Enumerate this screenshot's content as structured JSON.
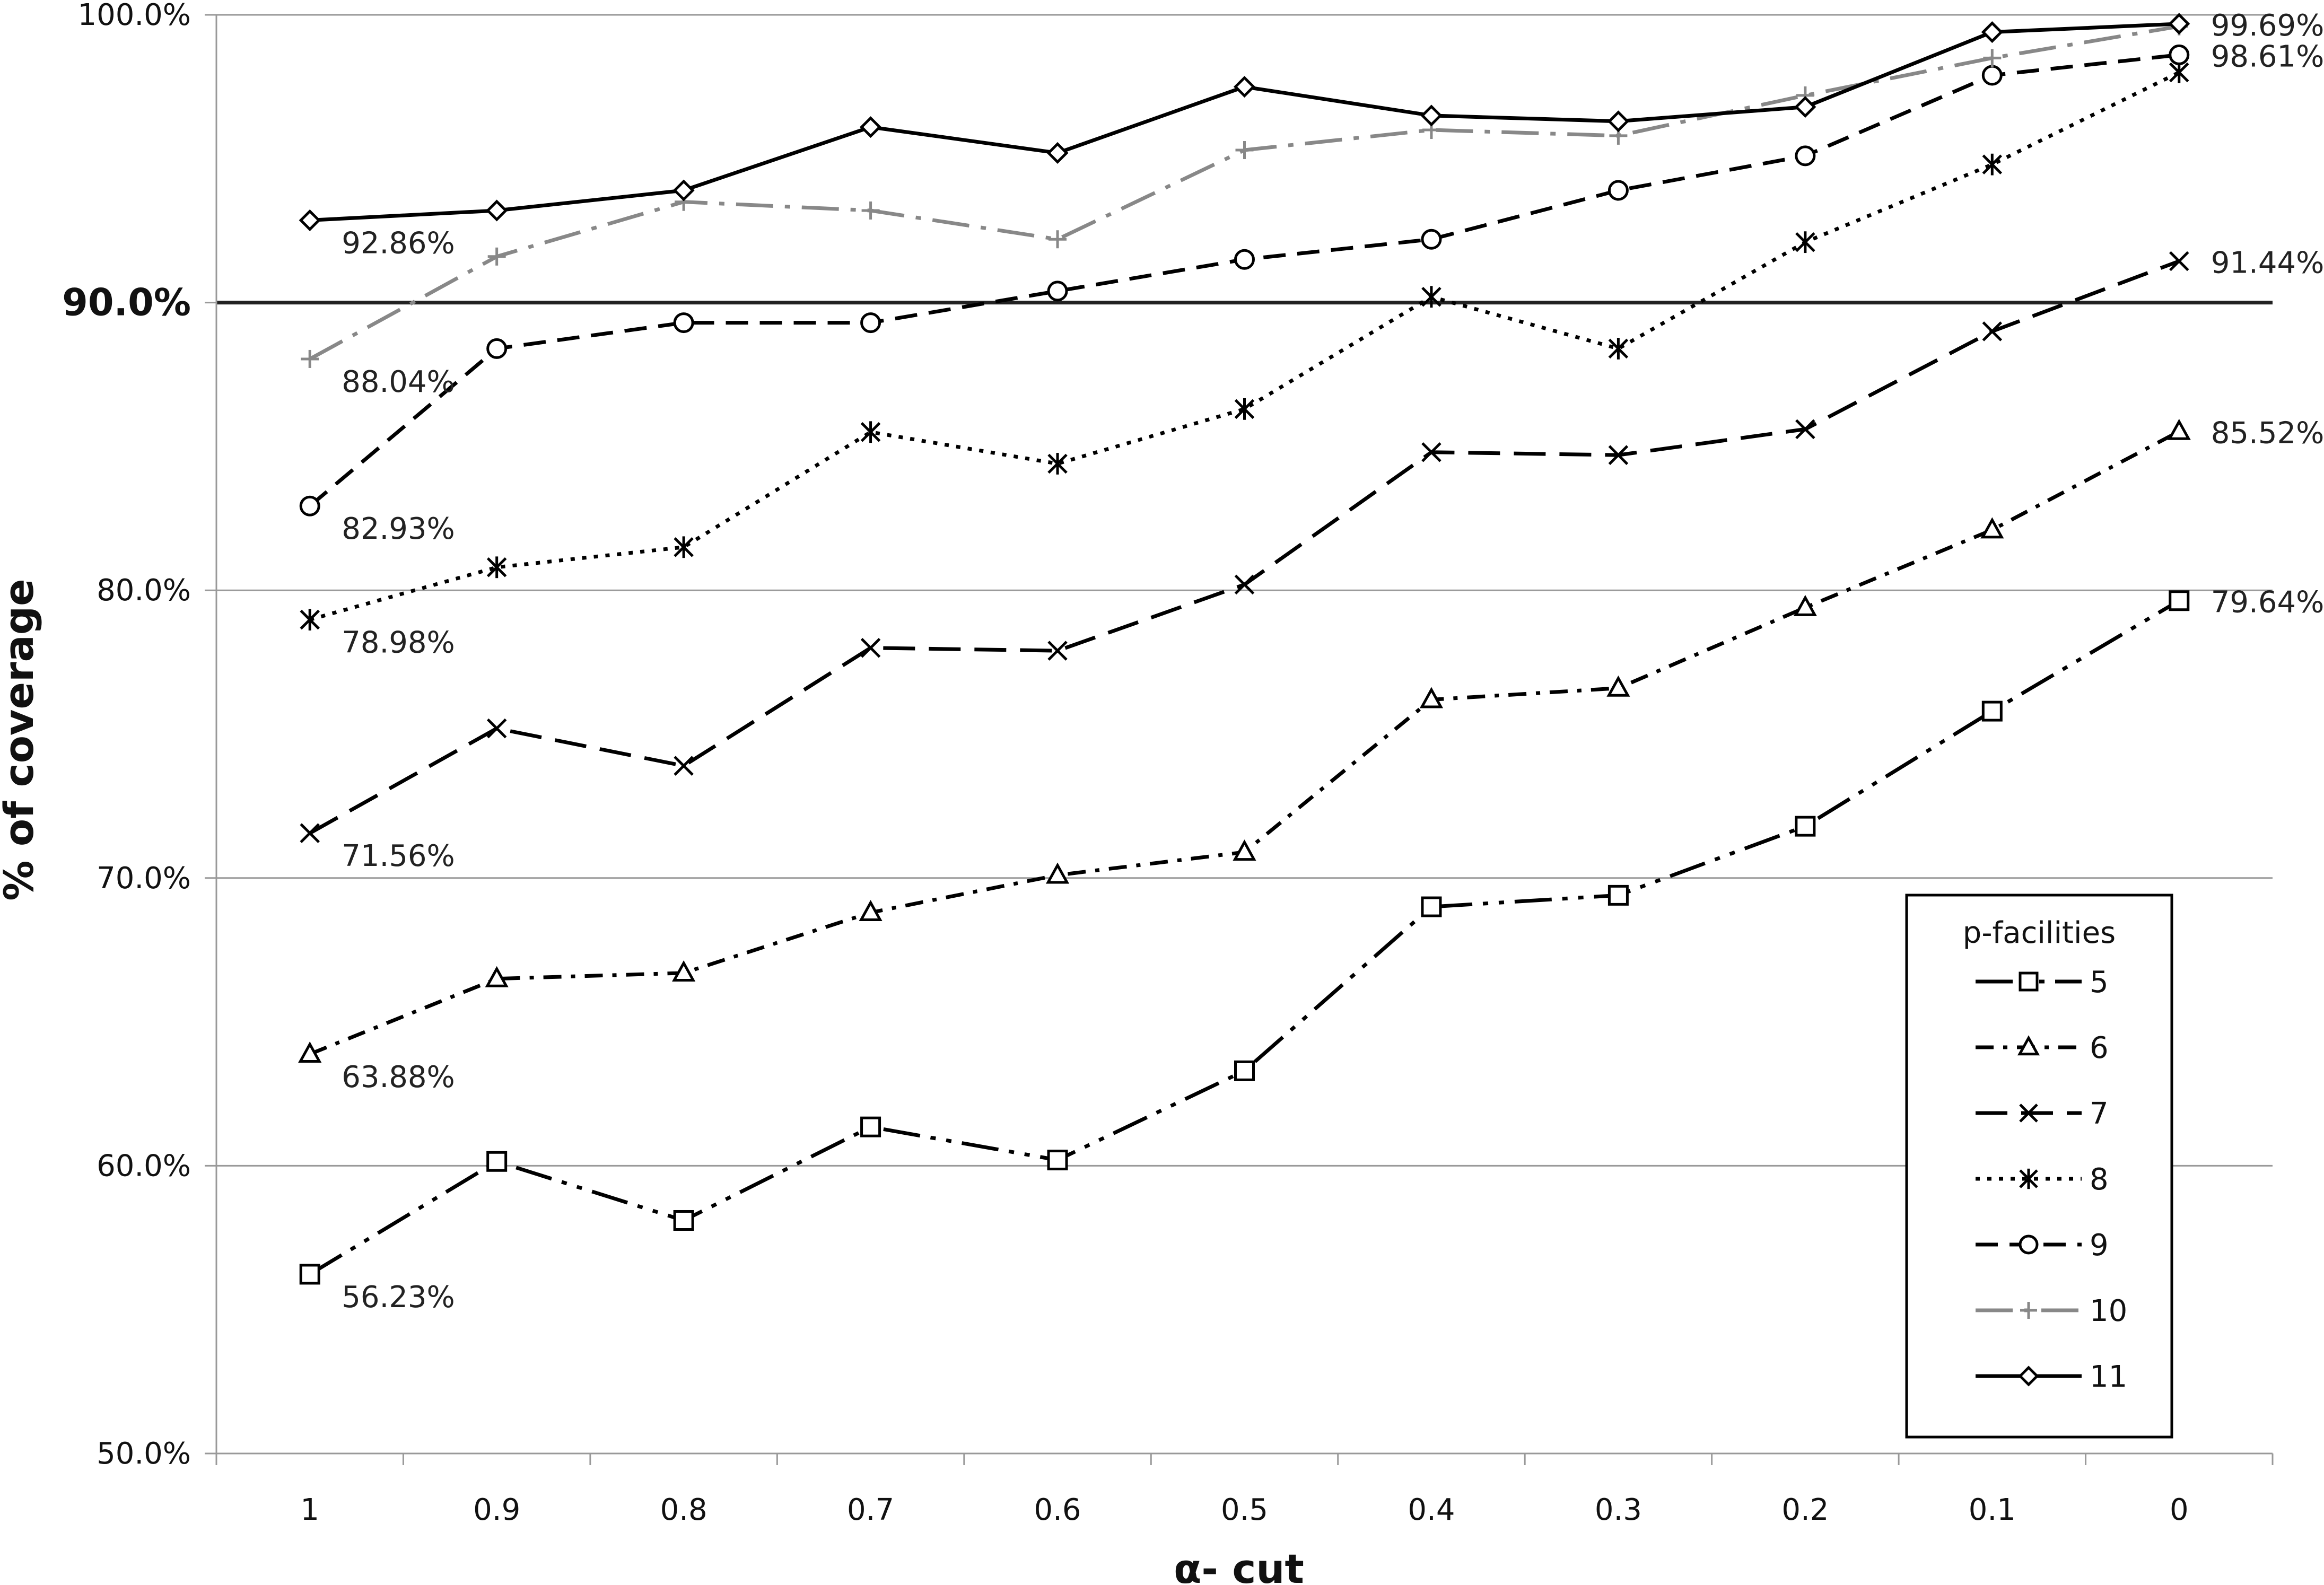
{
  "chart_data": {
    "type": "line",
    "title": "",
    "xlabel": "α- cut",
    "ylabel": "% of coverage",
    "categories": [
      "1",
      "0.9",
      "0.8",
      "0.7",
      "0.6",
      "0.5",
      "0.4",
      "0.3",
      "0.2",
      "0.1",
      "0"
    ],
    "ylim": [
      50,
      100
    ],
    "yticks": [
      {
        "value": 50,
        "label": "50.0%",
        "bold": false
      },
      {
        "value": 60,
        "label": "60.0%",
        "bold": false
      },
      {
        "value": 70,
        "label": "70.0%",
        "bold": false
      },
      {
        "value": 80,
        "label": "80.0%",
        "bold": false
      },
      {
        "value": 90,
        "label": "90.0%",
        "bold": true
      },
      {
        "value": 100,
        "label": "100.0%",
        "bold": false
      }
    ],
    "reference_line": {
      "value": 90
    },
    "grid": "horizontal",
    "legend": {
      "title": "p-facilities",
      "position": "bottom-right"
    },
    "series": [
      {
        "name": "5",
        "marker": "square",
        "dash": "longdashdotdot",
        "color": "#000000",
        "values": [
          56.23,
          60.15,
          58.1,
          61.35,
          60.2,
          63.3,
          69.0,
          69.4,
          71.8,
          75.8,
          79.64
        ]
      },
      {
        "name": "6",
        "marker": "triangle",
        "dash": "dashdot",
        "color": "#000000",
        "values": [
          63.88,
          66.5,
          66.7,
          68.8,
          70.1,
          70.9,
          76.2,
          76.6,
          79.4,
          82.1,
          85.52
        ]
      },
      {
        "name": "7",
        "marker": "x",
        "dash": "longdash",
        "color": "#000000",
        "values": [
          71.56,
          75.2,
          73.9,
          78.0,
          77.9,
          80.2,
          84.8,
          84.7,
          85.6,
          89.0,
          91.44
        ]
      },
      {
        "name": "8",
        "marker": "star",
        "dash": "dot",
        "color": "#000000",
        "values": [
          78.98,
          80.8,
          81.5,
          85.5,
          84.4,
          86.3,
          90.2,
          88.4,
          92.1,
          94.8,
          98.0
        ]
      },
      {
        "name": "9",
        "marker": "circle",
        "dash": "dash",
        "color": "#000000",
        "values": [
          82.93,
          88.4,
          89.3,
          89.3,
          90.4,
          91.5,
          92.2,
          93.9,
          95.1,
          97.9,
          98.61
        ]
      },
      {
        "name": "10",
        "marker": "plus",
        "dash": "longdashdot",
        "color": "#888888",
        "values": [
          88.04,
          91.6,
          93.5,
          93.2,
          92.2,
          95.3,
          96.0,
          95.8,
          97.2,
          98.5,
          99.6
        ]
      },
      {
        "name": "11",
        "marker": "diamond",
        "dash": "solid",
        "color": "#000000",
        "values": [
          92.86,
          93.2,
          93.9,
          96.1,
          95.2,
          97.5,
          96.5,
          96.3,
          96.8,
          99.4,
          99.69
        ]
      }
    ],
    "data_labels": [
      {
        "series": "11",
        "index": 0,
        "text": "92.86%"
      },
      {
        "series": "10",
        "index": 0,
        "text": "88.04%"
      },
      {
        "series": "9",
        "index": 0,
        "text": "82.93%"
      },
      {
        "series": "8",
        "index": 0,
        "text": "78.98%"
      },
      {
        "series": "7",
        "index": 0,
        "text": "71.56%"
      },
      {
        "series": "6",
        "index": 0,
        "text": "63.88%"
      },
      {
        "series": "5",
        "index": 0,
        "text": "56.23%"
      },
      {
        "series": "11",
        "index": 10,
        "text": "99.69%"
      },
      {
        "series": "9",
        "index": 10,
        "text": "98.61%"
      },
      {
        "series": "7",
        "index": 10,
        "text": "91.44%"
      },
      {
        "series": "6",
        "index": 10,
        "text": "85.52%"
      },
      {
        "series": "5",
        "index": 10,
        "text": "79.64%"
      }
    ]
  }
}
